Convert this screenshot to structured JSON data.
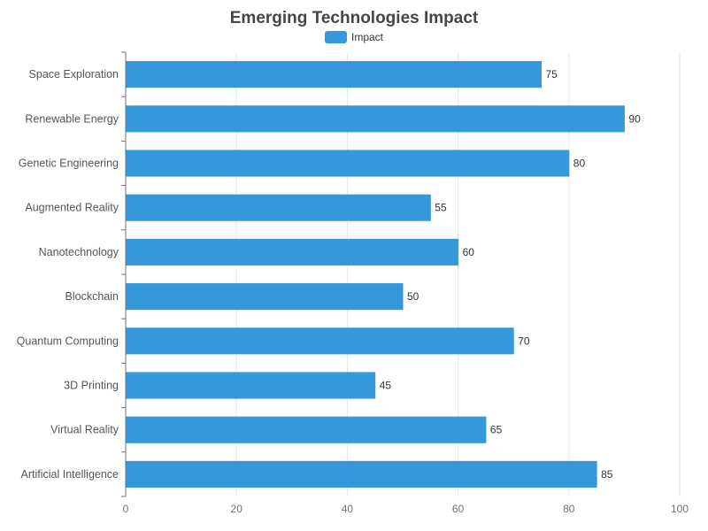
{
  "chart_data": {
    "type": "bar",
    "orientation": "horizontal",
    "title": "Emerging Technologies Impact",
    "xlabel": "",
    "ylabel": "",
    "xlim": [
      0,
      100
    ],
    "xticks": [
      0,
      20,
      40,
      60,
      80,
      100
    ],
    "grid": true,
    "legend_position": "top-center",
    "categories": [
      "Space Exploration",
      "Renewable Energy",
      "Genetic Engineering",
      "Augmented Reality",
      "Nanotechnology",
      "Blockchain",
      "Quantum Computing",
      "3D Printing",
      "Virtual Reality",
      "Artificial Intelligence"
    ],
    "series": [
      {
        "name": "Impact",
        "color": "#3498db",
        "values": [
          75,
          90,
          80,
          55,
          60,
          50,
          70,
          45,
          65,
          85
        ]
      }
    ]
  }
}
